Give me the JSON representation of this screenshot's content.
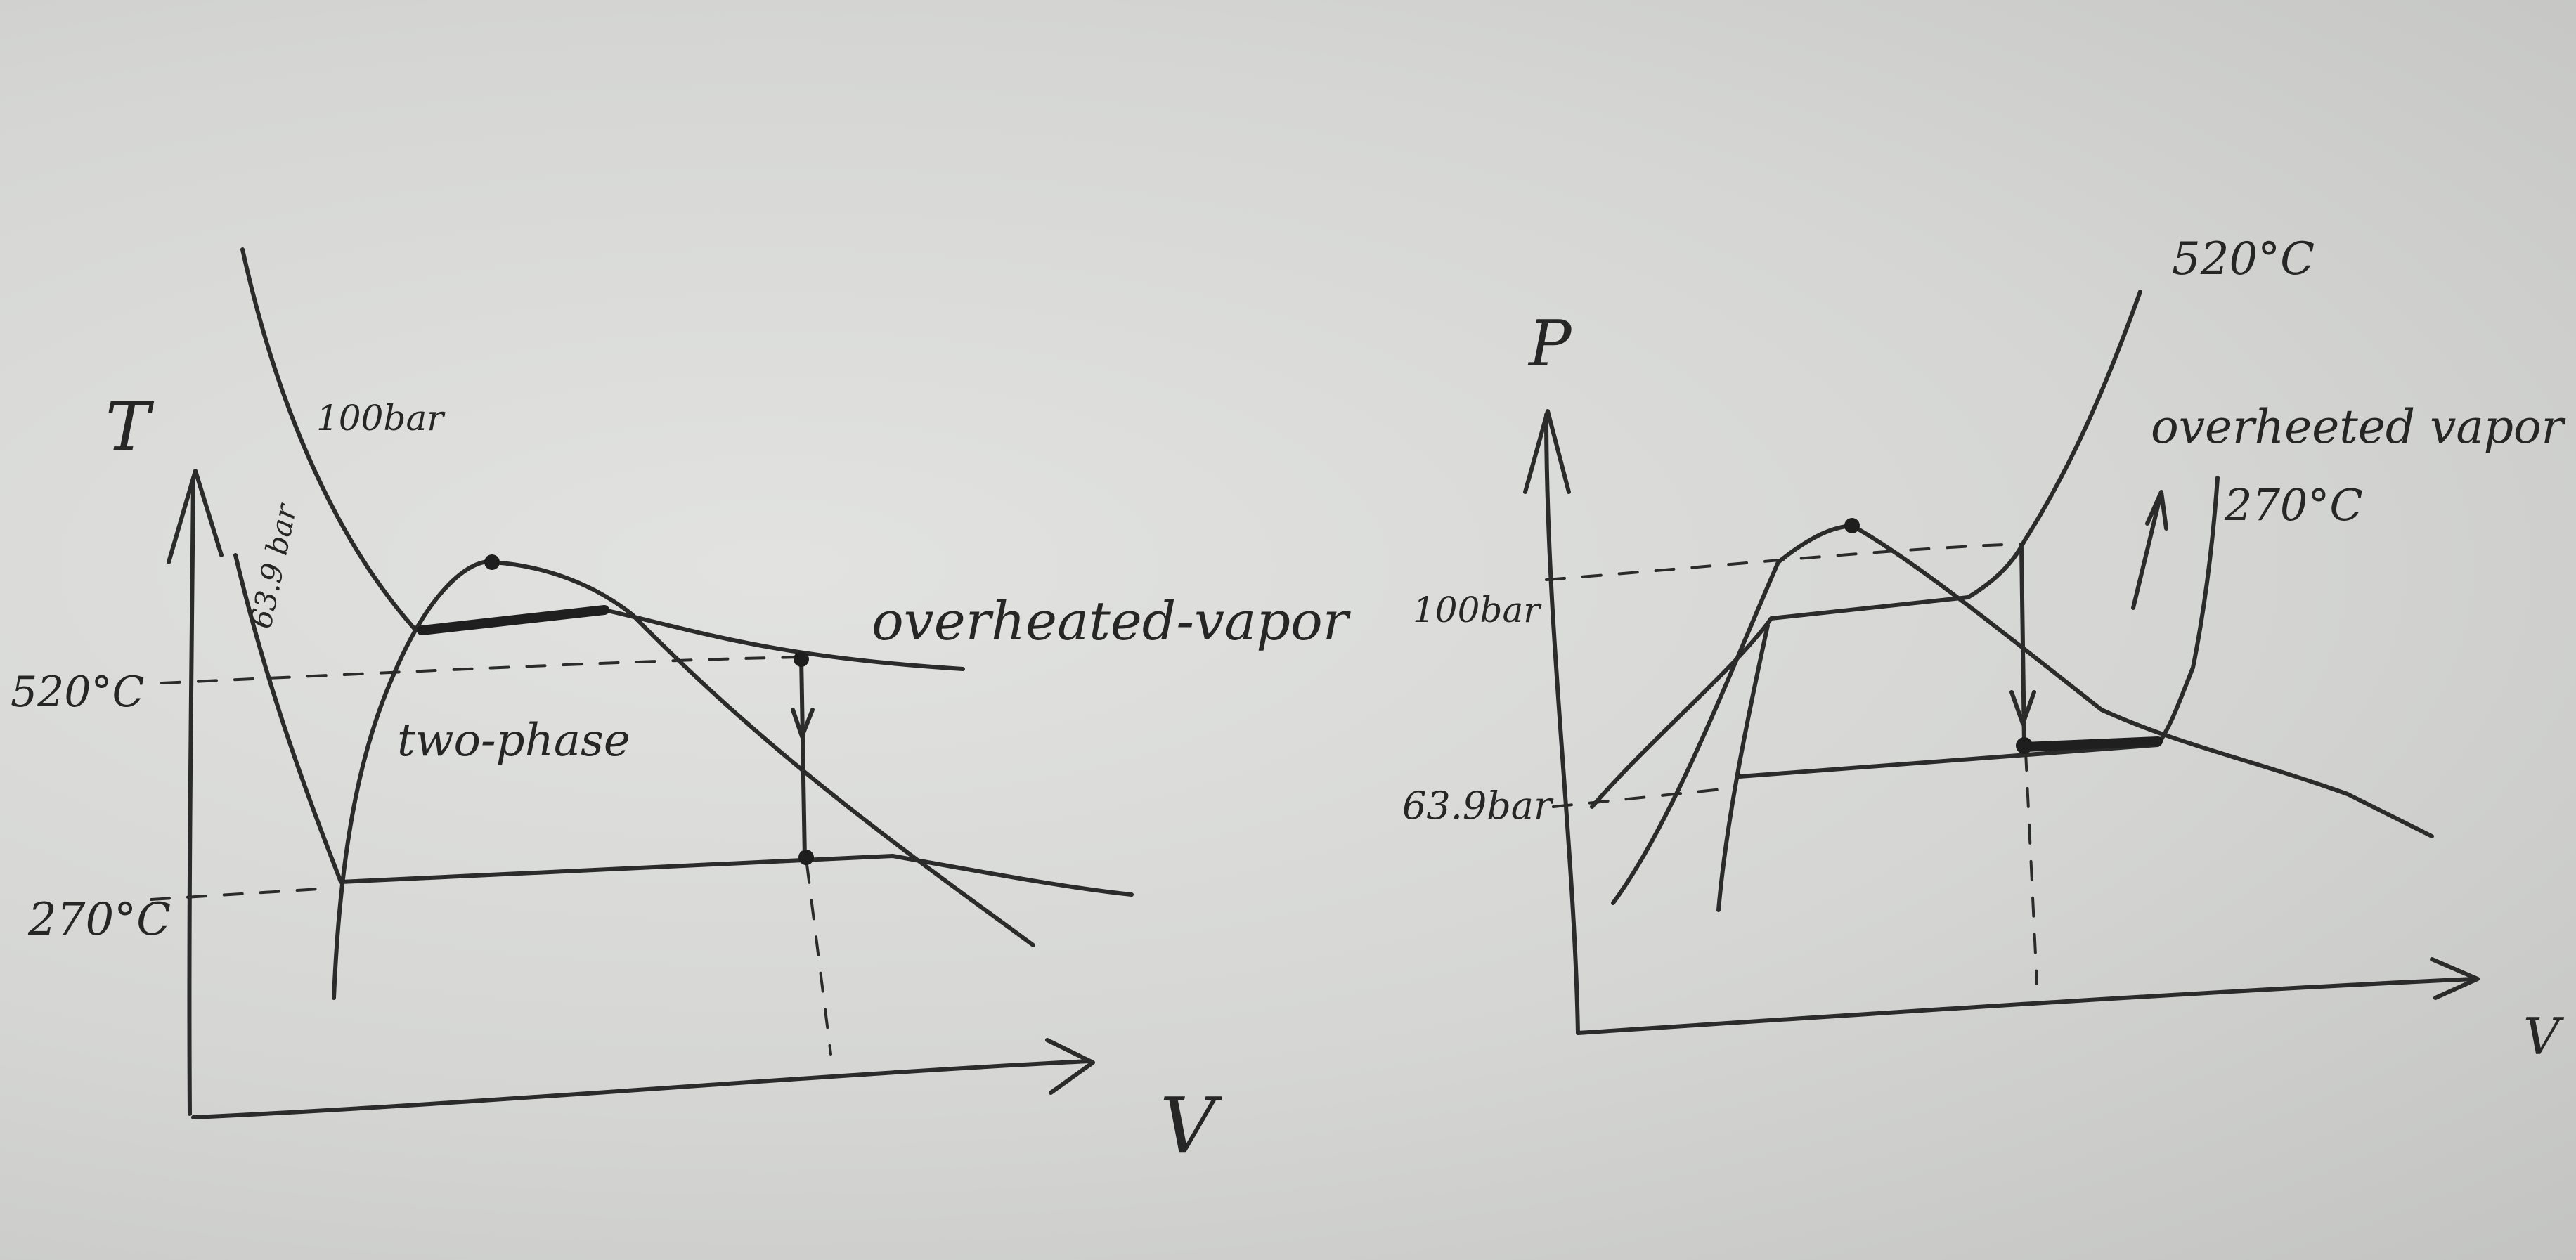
{
  "left_diagram": {
    "y_axis_label": "T",
    "x_axis_label": "V",
    "temp_high_label": "520°C",
    "temp_low_label": "270°C",
    "isobar_high_label": "100bar",
    "isobar_low_label": "63.9 bar",
    "region_label": "two-phase",
    "vapor_label": "overheated-vapor"
  },
  "right_diagram": {
    "y_axis_label": "P",
    "x_axis_label": "V",
    "pressure_high_label": "100bar",
    "pressure_low_label": "63.9bar",
    "isotherm_high_label": "520°C",
    "isotherm_low_label": "270°C",
    "vapor_label": "overheeted vapor"
  }
}
